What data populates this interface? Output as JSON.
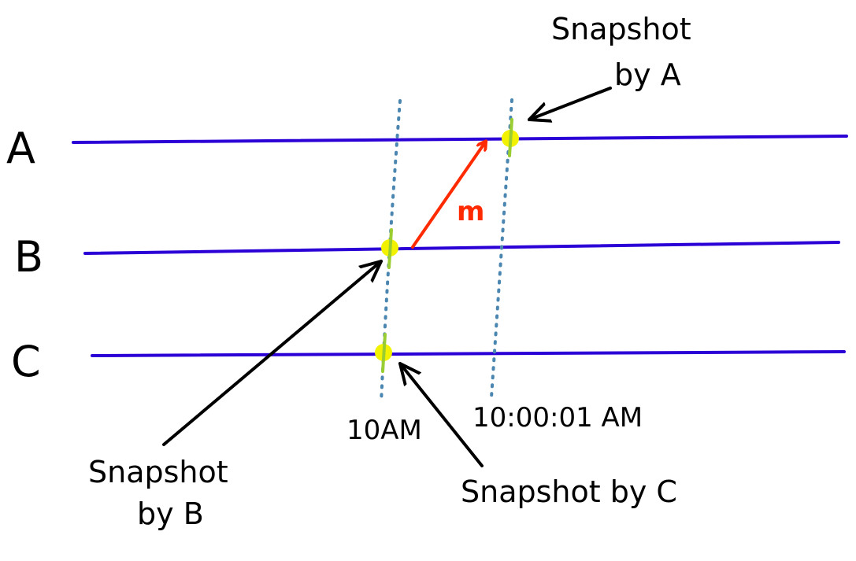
{
  "processes": [
    {
      "id": "A",
      "label": "A"
    },
    {
      "id": "B",
      "label": "B"
    },
    {
      "id": "C",
      "label": "C"
    }
  ],
  "times": [
    {
      "id": "t1",
      "label": "10AM"
    },
    {
      "id": "t2",
      "label": "10:00:01 AM"
    }
  ],
  "message": {
    "label": "m",
    "from": "B",
    "to": "A",
    "color": "#ff2a00"
  },
  "annotations": {
    "snapshot_a": [
      "Snapshot",
      "by A"
    ],
    "snapshot_b": [
      "Snapshot",
      "by B"
    ],
    "snapshot_c": "Snapshot by C"
  },
  "colors": {
    "process_line": "#2a00d6",
    "time_cut": "#4a86b0",
    "snapshot_marker": "#f2f200",
    "snapshot_tick": "#9acd32",
    "message": "#ff2a00",
    "ink": "#000000"
  }
}
